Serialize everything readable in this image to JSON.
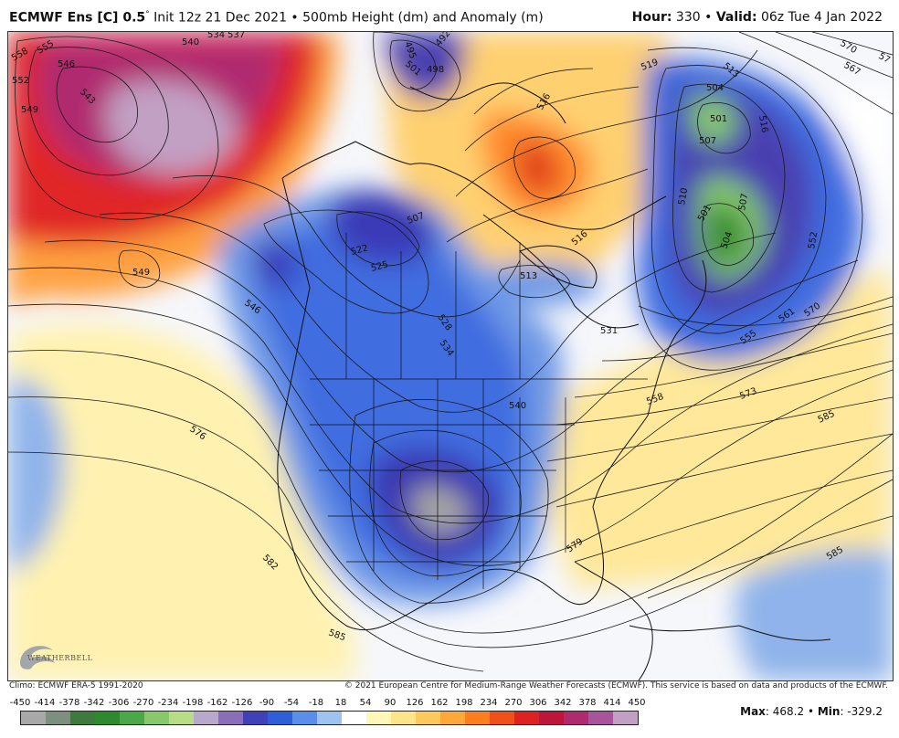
{
  "header": {
    "model": "ECMWF Ens [C] 0.5",
    "degree": "°",
    "init": " Init 12z 21 Dec 2021 • 500mb Height (dm) and Anomaly (m)",
    "hour_label": "Hour:",
    "hour_value": " 330 • ",
    "valid_label": "Valid:",
    "valid_value": " 06z Tue 4 Jan 2022"
  },
  "credits": {
    "climo": "Climo: ECMWF ERA-5 1991-2020",
    "copyright": "© 2021 European Centre for Medium-Range Weather Forecasts (ECMWF). This service is based on data and products of the ECMWF."
  },
  "logo": {
    "text": "WEATHERBELL",
    "icon": "weatherbell-swirl-icon"
  },
  "colorbar": {
    "ticks": [
      "-450",
      "-414",
      "-378",
      "-342",
      "-306",
      "-270",
      "-234",
      "-198",
      "-162",
      "-126",
      "-90",
      "-54",
      "-18",
      "18",
      "54",
      "90",
      "126",
      "162",
      "198",
      "234",
      "270",
      "306",
      "342",
      "378",
      "414",
      "450"
    ],
    "colors": [
      "#a8a8a8",
      "#7d8f7d",
      "#3e7a3e",
      "#2d8b2d",
      "#4aa84a",
      "#86c86a",
      "#b9dd86",
      "#b8a8cc",
      "#8a6fb8",
      "#4040b8",
      "#2f5fd8",
      "#5b8ee8",
      "#9fc3f0",
      "#ffffff",
      "#fff7b8",
      "#ffe58a",
      "#ffc85a",
      "#ffa83a",
      "#ff7f1f",
      "#f0501a",
      "#dd2222",
      "#c0153a",
      "#b02a70",
      "#a8549a",
      "#c2a0c4"
    ]
  },
  "stats": {
    "max_label": "Max",
    "max_value": ": 468.2 • ",
    "min_label": "Min",
    "min_value": ": -329.2"
  },
  "map": {
    "contour_labels": [
      "558",
      "555",
      "546",
      "552",
      "543",
      "549",
      "540",
      "534",
      "537",
      "495",
      "492",
      "501",
      "498",
      "570",
      "567",
      "57",
      "519",
      "513",
      "504",
      "501",
      "507",
      "516",
      "510",
      "507",
      "504",
      "501",
      "552",
      "516",
      "507",
      "516",
      "549",
      "522",
      "525",
      "513",
      "546",
      "528",
      "534",
      "531",
      "561",
      "570",
      "555",
      "558",
      "573",
      "540",
      "585",
      "576",
      "582",
      "579",
      "585",
      "585",
      "573",
      "540",
      "549",
      "546"
    ],
    "colors": {
      "ocean": "#e9eef8",
      "land_neutral": "#f4f4f4",
      "ridge": "#ffe58a",
      "trough": "#2f5fd8",
      "strong_ridge": "#dd2222",
      "strong_trough": "#4aa84a"
    }
  }
}
